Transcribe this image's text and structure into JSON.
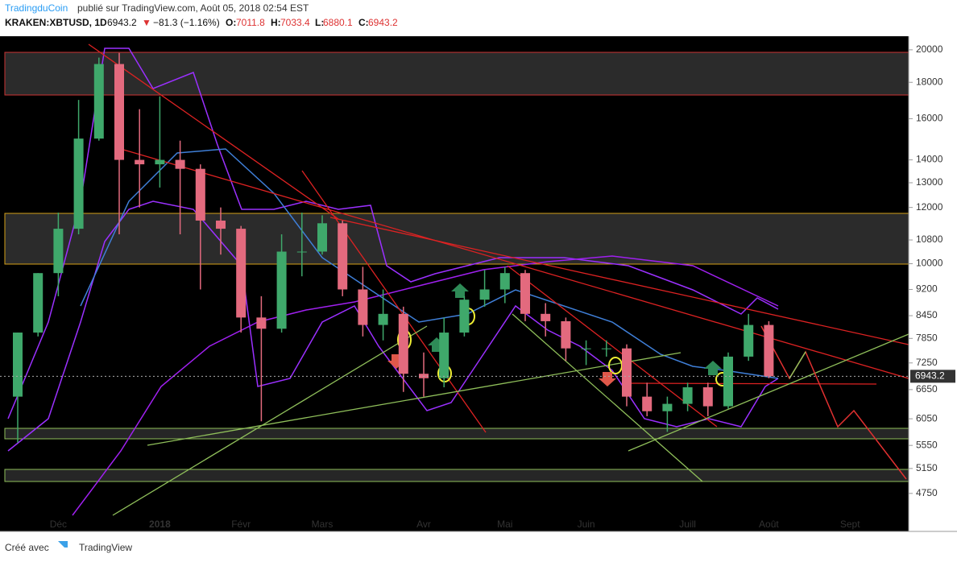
{
  "header": {
    "author": "TradingduCoin",
    "published": "publié sur TradingView.com, Août 05, 2018 02:54 EST",
    "symbol": "KRAKEN:XBTUSD, 1D",
    "last": "6943.2",
    "arrow": "▼",
    "change": "−81.3 (−1.16%)",
    "o_label": "O:",
    "o": "7011.8",
    "h_label": "H:",
    "h": "7033.4",
    "l_label": "L:",
    "l": "6880.1",
    "c_label": "C:",
    "c": "6943.2"
  },
  "price_label": "6943.2",
  "footer": {
    "created": "Créé avec",
    "brand": "TradingView"
  },
  "chart_data": {
    "type": "candlestick",
    "log_scale": true,
    "grid": false,
    "up_color": "#3fa86b",
    "down_color": "#e36a7e",
    "categories": [
      null,
      null,
      "Déc",
      null,
      null,
      null,
      null,
      "2018",
      null,
      null,
      null,
      "Févr",
      null,
      null,
      null,
      "Mars",
      null,
      null,
      null,
      null,
      "Avr",
      null,
      null,
      null,
      "Mai",
      null,
      null,
      null,
      "Juin",
      null,
      null,
      null,
      null,
      "Juill",
      null,
      null,
      null,
      "Août",
      null,
      null,
      null,
      "Sept",
      null,
      null
    ],
    "open": [
      6500,
      8000,
      9700,
      11200,
      15000,
      19100,
      14000,
      13800,
      14000,
      13600,
      11500,
      11200,
      8400,
      8100,
      10400,
      10400,
      11400,
      9200,
      8200,
      8500,
      7000,
      6900,
      8000,
      8900,
      9200,
      9700,
      8500,
      8300,
      7600,
      7600,
      7600,
      6500,
      6200,
      6350,
      6700,
      6300,
      7400,
      8200,
      null,
      null,
      null,
      null,
      null,
      null
    ],
    "high": [
      8000,
      9700,
      11800,
      17000,
      19500,
      19800,
      16500,
      17200,
      14900,
      13800,
      12000,
      11300,
      9000,
      11000,
      11800,
      11700,
      11500,
      9900,
      9200,
      8700,
      7500,
      8400,
      9000,
      9800,
      9900,
      9800,
      8800,
      8400,
      7800,
      7800,
      7700,
      6800,
      6500,
      6800,
      6800,
      7500,
      8500,
      8300,
      null,
      null,
      null,
      null,
      null,
      null
    ],
    "low": [
      5600,
      7900,
      9000,
      11000,
      14900,
      11000,
      12000,
      12800,
      11000,
      9200,
      10300,
      8000,
      6000,
      8000,
      9600,
      10300,
      9000,
      7900,
      7800,
      6600,
      6500,
      6700,
      7900,
      8700,
      8800,
      8300,
      7900,
      7300,
      7200,
      7400,
      6300,
      6100,
      5800,
      6200,
      6100,
      6250,
      7300,
      6900,
      null,
      null,
      null,
      null,
      null,
      null
    ],
    "close": [
      8000,
      9700,
      11200,
      15000,
      19100,
      14000,
      13800,
      14000,
      13600,
      11500,
      11200,
      8400,
      8100,
      10400,
      10400,
      11400,
      9200,
      8200,
      8500,
      7000,
      6900,
      8000,
      8900,
      9200,
      9700,
      8500,
      8300,
      7600,
      7600,
      7600,
      6500,
      6200,
      6350,
      6700,
      6300,
      7400,
      8200,
      6943.2,
      null,
      null,
      null,
      null,
      null,
      null
    ],
    "ylim": [
      4200,
      20900
    ],
    "yticks": [
      20000,
      18000,
      16000,
      14000,
      13000,
      12000,
      10800,
      10000,
      9200,
      8450,
      7850,
      7250,
      6650,
      6050,
      5550,
      5150,
      4750
    ]
  }
}
